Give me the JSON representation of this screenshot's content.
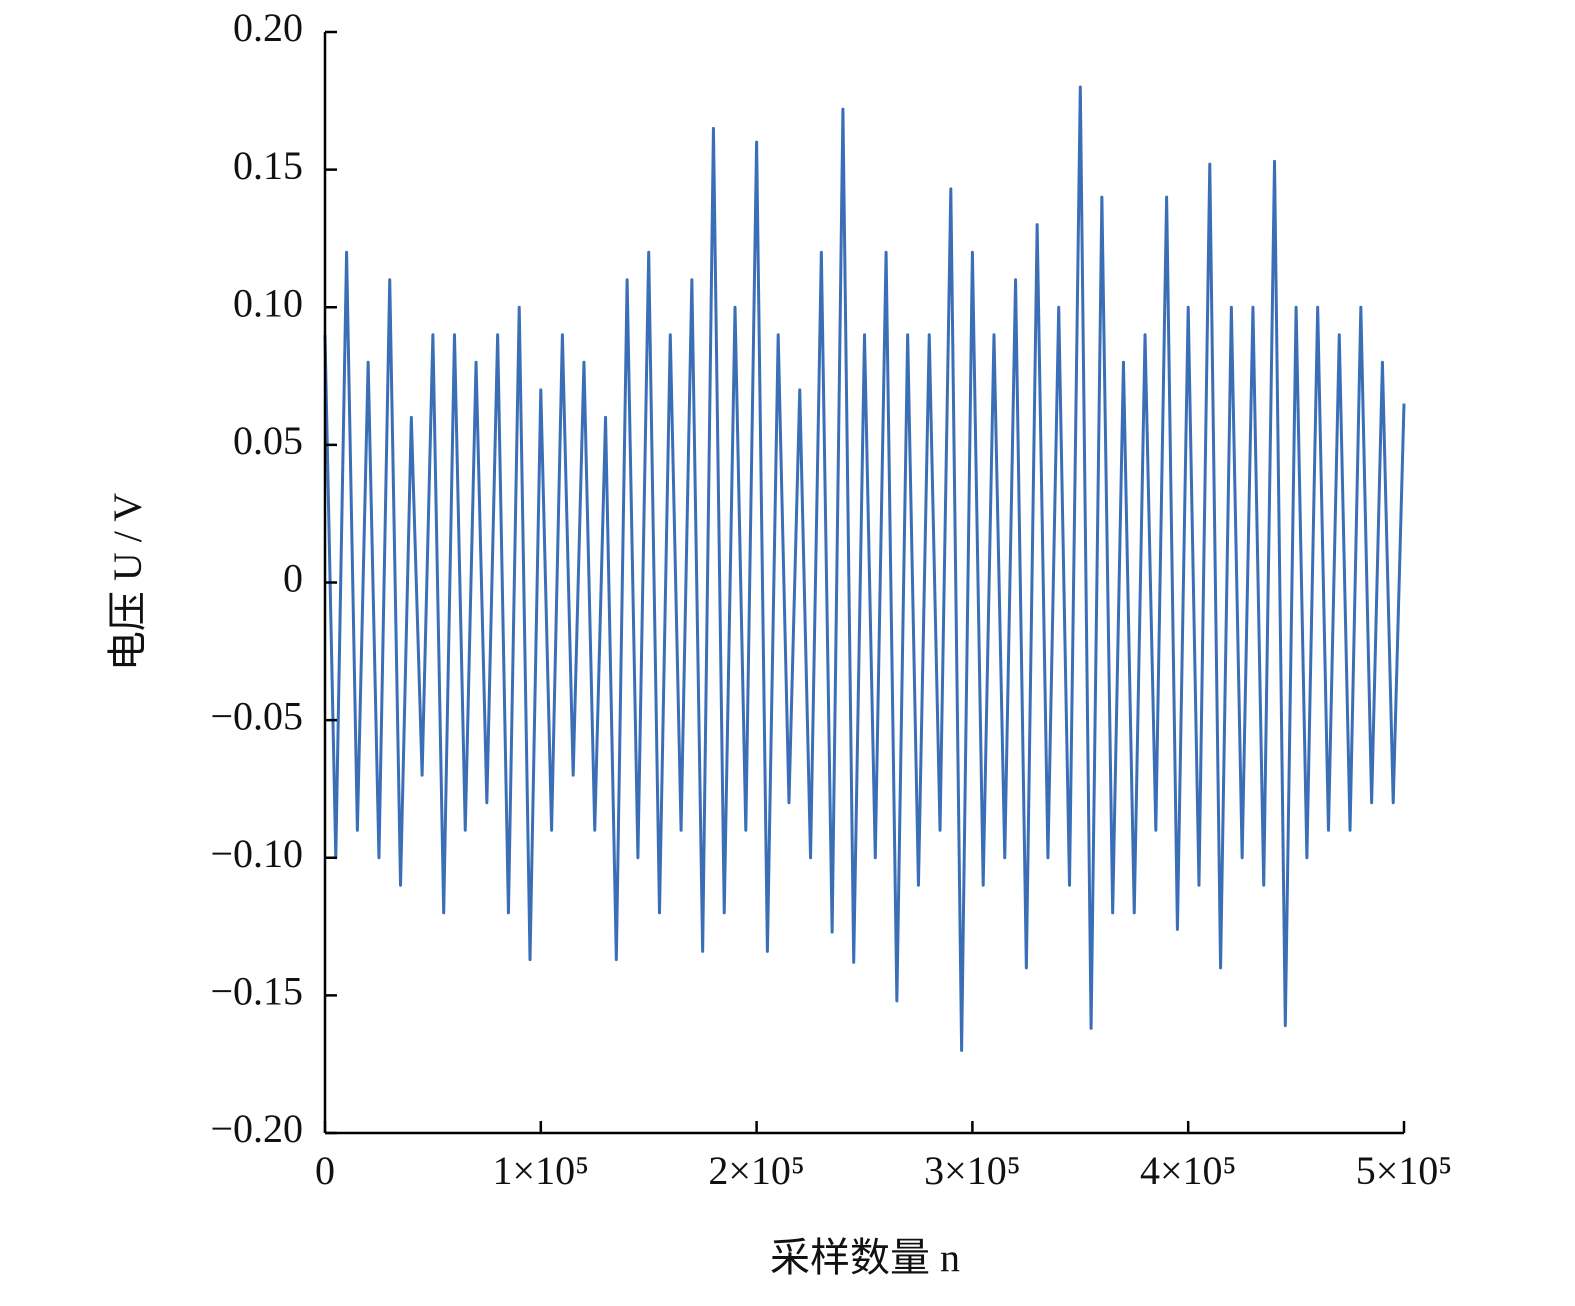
{
  "chart_data": {
    "type": "line",
    "x_label": "采样数量 n",
    "y_label": "电压 U / V",
    "color": "#3a6fb7",
    "x": [
      0,
      5000,
      10000,
      15000,
      20000,
      25000,
      30000,
      35000,
      40000,
      45000,
      50000,
      55000,
      60000,
      65000,
      70000,
      75000,
      80000,
      85000,
      90000,
      95000,
      100000,
      105000,
      110000,
      115000,
      120000,
      125000,
      130000,
      135000,
      140000,
      145000,
      150000,
      155000,
      160000,
      165000,
      170000,
      175000,
      180000,
      185000,
      190000,
      195000,
      200000,
      205000,
      210000,
      215000,
      220000,
      225000,
      230000,
      235000,
      240000,
      245000,
      250000,
      255000,
      260000,
      265000,
      270000,
      275000,
      280000,
      285000,
      290000,
      295000,
      300000,
      305000,
      310000,
      315000,
      320000,
      325000,
      330000,
      335000,
      340000,
      345000,
      350000,
      355000,
      360000,
      365000,
      370000,
      375000,
      380000,
      385000,
      390000,
      395000,
      400000,
      405000,
      410000,
      415000,
      420000,
      425000,
      430000,
      435000,
      440000,
      445000,
      450000,
      455000,
      460000,
      465000,
      470000,
      475000,
      480000,
      485000,
      490000,
      495000,
      500000
    ],
    "values": [
      0.09,
      -0.1,
      0.12,
      -0.09,
      0.08,
      -0.1,
      0.11,
      -0.11,
      0.06,
      -0.07,
      0.09,
      -0.12,
      0.09,
      -0.09,
      0.08,
      -0.08,
      0.09,
      -0.12,
      0.1,
      -0.137,
      0.07,
      -0.09,
      0.09,
      -0.07,
      0.08,
      -0.09,
      0.06,
      -0.137,
      0.11,
      -0.1,
      0.12,
      -0.12,
      0.09,
      -0.09,
      0.11,
      -0.134,
      0.165,
      -0.12,
      0.1,
      -0.09,
      0.16,
      -0.134,
      0.09,
      -0.08,
      0.07,
      -0.1,
      0.12,
      -0.127,
      0.172,
      -0.138,
      0.09,
      -0.1,
      0.12,
      -0.152,
      0.09,
      -0.11,
      0.09,
      -0.09,
      0.143,
      -0.17,
      0.12,
      -0.11,
      0.09,
      -0.1,
      0.11,
      -0.14,
      0.13,
      -0.1,
      0.1,
      -0.11,
      0.18,
      -0.162,
      0.14,
      -0.12,
      0.08,
      -0.12,
      0.09,
      -0.09,
      0.14,
      -0.126,
      0.1,
      -0.11,
      0.152,
      -0.14,
      0.1,
      -0.1,
      0.1,
      -0.11,
      0.153,
      -0.161,
      0.1,
      -0.1,
      0.1,
      -0.09,
      0.09,
      -0.09,
      0.1,
      -0.08,
      0.08,
      -0.08,
      0.065
    ],
    "xlim": [
      0,
      500000
    ],
    "xticks": [
      0,
      {
        "value": 100000,
        "label": "1×10⁵"
      },
      {
        "value": 200000,
        "label": "2×10⁵"
      },
      {
        "value": 300000,
        "label": "3×10⁵"
      },
      {
        "value": 400000,
        "label": "4×10⁵"
      },
      {
        "value": 500000,
        "label": "5×10⁵"
      }
    ],
    "ylim": [
      -0.2,
      0.2
    ],
    "yticks": [
      {
        "value": -0.2,
        "label": "−0.20"
      },
      {
        "value": -0.15,
        "label": "−0.15"
      },
      {
        "value": -0.1,
        "label": "−0.10"
      },
      {
        "value": -0.05,
        "label": "−0.05"
      },
      0,
      {
        "value": 0.05,
        "label": "0.05"
      },
      {
        "value": 0.1,
        "label": "0.10"
      },
      {
        "value": 0.15,
        "label": "0.15"
      },
      {
        "value": 0.2,
        "label": "0.20"
      }
    ],
    "grid": false
  }
}
